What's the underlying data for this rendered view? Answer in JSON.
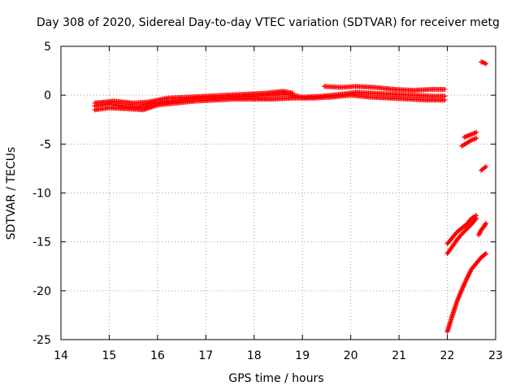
{
  "chart_data": {
    "type": "scatter",
    "title": "Day 308 of 2020, Sidereal Day-to-day VTEC variation (SDTVAR) for receiver metg",
    "xlabel": "GPS time / hours",
    "ylabel": "SDTVAR / TECUs",
    "xlim": [
      14,
      23
    ],
    "ylim": [
      -25,
      5
    ],
    "xticks": [
      "14",
      "15",
      "16",
      "17",
      "18",
      "19",
      "20",
      "21",
      "22",
      "23"
    ],
    "yticks": [
      "5",
      "0",
      "-5",
      "-10",
      "-15",
      "-20",
      "-25"
    ],
    "grid": true,
    "marker": "plus",
    "color": "#ff0000",
    "series": [
      {
        "points": [
          [
            14.7,
            -1.1
          ],
          [
            15.0,
            -0.9
          ],
          [
            15.3,
            -1.1
          ],
          [
            15.6,
            -1.2
          ],
          [
            15.9,
            -0.9
          ],
          [
            16.2,
            -0.6
          ],
          [
            16.5,
            -0.5
          ],
          [
            16.8,
            -0.4
          ],
          [
            17.1,
            -0.3
          ],
          [
            17.5,
            -0.2
          ],
          [
            17.9,
            -0.1
          ],
          [
            18.3,
            0.0
          ],
          [
            18.7,
            0.1
          ],
          [
            19.0,
            -0.2
          ],
          [
            19.4,
            -0.1
          ],
          [
            19.8,
            0.1
          ],
          [
            20.1,
            0.3
          ],
          [
            20.5,
            0.2
          ],
          [
            20.9,
            0.1
          ],
          [
            21.3,
            0.0
          ],
          [
            21.7,
            -0.1
          ],
          [
            21.95,
            -0.1
          ]
        ]
      },
      {
        "points": [
          [
            14.7,
            -1.5
          ],
          [
            15.0,
            -1.3
          ],
          [
            15.4,
            -1.4
          ],
          [
            15.7,
            -1.5
          ],
          [
            16.0,
            -1.0
          ],
          [
            16.4,
            -0.8
          ],
          [
            16.8,
            -0.6
          ],
          [
            17.2,
            -0.5
          ],
          [
            17.6,
            -0.4
          ],
          [
            18.0,
            -0.4
          ],
          [
            18.4,
            -0.4
          ],
          [
            18.8,
            -0.3
          ],
          [
            19.2,
            -0.3
          ],
          [
            19.6,
            -0.2
          ],
          [
            20.0,
            0.0
          ],
          [
            20.4,
            -0.2
          ],
          [
            20.8,
            -0.3
          ],
          [
            21.2,
            -0.4
          ],
          [
            21.6,
            -0.5
          ],
          [
            21.95,
            -0.5
          ]
        ]
      },
      {
        "points": [
          [
            14.7,
            -0.8
          ],
          [
            15.1,
            -0.6
          ],
          [
            15.5,
            -0.8
          ],
          [
            15.8,
            -0.7
          ],
          [
            16.2,
            -0.3
          ],
          [
            16.6,
            -0.2
          ],
          [
            17.0,
            -0.1
          ],
          [
            17.4,
            0.0
          ],
          [
            17.8,
            0.1
          ],
          [
            18.2,
            0.2
          ],
          [
            18.6,
            0.4
          ],
          [
            18.8,
            0.2
          ]
        ]
      },
      {
        "points": [
          [
            19.45,
            0.9
          ],
          [
            19.8,
            0.8
          ],
          [
            20.1,
            0.9
          ],
          [
            20.5,
            0.8
          ],
          [
            20.9,
            0.6
          ],
          [
            21.3,
            0.5
          ],
          [
            21.7,
            0.6
          ],
          [
            21.95,
            0.6
          ]
        ]
      },
      {
        "points": [
          [
            22.0,
            -15.2
          ],
          [
            22.1,
            -14.6
          ],
          [
            22.2,
            -14.0
          ],
          [
            22.3,
            -13.6
          ],
          [
            22.4,
            -13.2
          ],
          [
            22.5,
            -12.6
          ],
          [
            22.6,
            -12.3
          ]
        ]
      },
      {
        "points": [
          [
            22.0,
            -16.2
          ],
          [
            22.1,
            -15.5
          ],
          [
            22.2,
            -14.8
          ],
          [
            22.3,
            -14.2
          ],
          [
            22.4,
            -13.7
          ],
          [
            22.5,
            -13.2
          ],
          [
            22.6,
            -12.6
          ]
        ]
      },
      {
        "points": [
          [
            22.0,
            -24.2
          ],
          [
            22.1,
            -22.6
          ],
          [
            22.2,
            -21.1
          ],
          [
            22.3,
            -19.9
          ],
          [
            22.4,
            -18.8
          ],
          [
            22.5,
            -17.8
          ],
          [
            22.6,
            -17.2
          ],
          [
            22.7,
            -16.6
          ],
          [
            22.8,
            -16.2
          ]
        ]
      },
      {
        "points": [
          [
            22.3,
            -5.2
          ],
          [
            22.4,
            -4.9
          ],
          [
            22.5,
            -4.6
          ],
          [
            22.6,
            -4.4
          ]
        ]
      },
      {
        "points": [
          [
            22.35,
            -4.3
          ],
          [
            22.45,
            -4.1
          ],
          [
            22.55,
            -3.9
          ],
          [
            22.6,
            -3.8
          ]
        ]
      },
      {
        "points": [
          [
            22.7,
            -7.7
          ],
          [
            22.75,
            -7.5
          ],
          [
            22.8,
            -7.3
          ]
        ]
      },
      {
        "points": [
          [
            22.7,
            3.4
          ],
          [
            22.75,
            3.35
          ],
          [
            22.8,
            3.2
          ]
        ]
      },
      {
        "points": [
          [
            22.65,
            -14.3
          ],
          [
            22.7,
            -13.8
          ],
          [
            22.75,
            -13.5
          ],
          [
            22.8,
            -13.1
          ]
        ]
      }
    ]
  }
}
